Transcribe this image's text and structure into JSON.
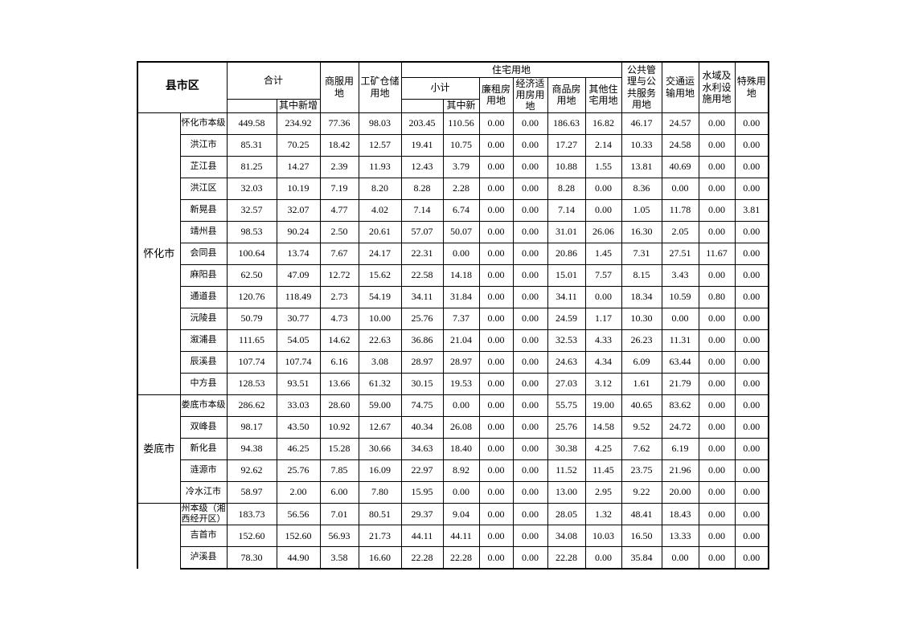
{
  "table": {
    "header": {
      "region": "县市区",
      "total": "合计",
      "total_new": "其中新增",
      "commercial": "商服用地",
      "mining_storage": "工矿仓储用地",
      "residential_group": "住宅用地",
      "residential_subtotal": "小计",
      "residential_subtotal_new": "其中新增",
      "low_rent_housing": "廉租房用地",
      "affordable_housing": "经济适用房用地",
      "commodity_housing": "商品房用地",
      "other_residential": "其他住宅用地",
      "public_management": "公共管理与公共服务用地",
      "transportation": "交通运输用地",
      "water_facilities": "水域及水利设施用地",
      "special_use": "特殊用地"
    },
    "sections": [
      {
        "group": "怀化市",
        "rows": [
          {
            "name": "怀化市本级",
            "values": [
              "449.58",
              "234.92",
              "77.36",
              "98.03",
              "203.45",
              "110.56",
              "0.00",
              "0.00",
              "186.63",
              "16.82",
              "46.17",
              "24.57",
              "0.00",
              "0.00"
            ]
          },
          {
            "name": "洪江市",
            "values": [
              "85.31",
              "70.25",
              "18.42",
              "12.57",
              "19.41",
              "10.75",
              "0.00",
              "0.00",
              "17.27",
              "2.14",
              "10.33",
              "24.58",
              "0.00",
              "0.00"
            ]
          },
          {
            "name": "芷江县",
            "values": [
              "81.25",
              "14.27",
              "2.39",
              "11.93",
              "12.43",
              "3.79",
              "0.00",
              "0.00",
              "10.88",
              "1.55",
              "13.81",
              "40.69",
              "0.00",
              "0.00"
            ]
          },
          {
            "name": "洪江区",
            "values": [
              "32.03",
              "10.19",
              "7.19",
              "8.20",
              "8.28",
              "2.28",
              "0.00",
              "0.00",
              "8.28",
              "0.00",
              "8.36",
              "0.00",
              "0.00",
              "0.00"
            ]
          },
          {
            "name": "新晃县",
            "values": [
              "32.57",
              "32.07",
              "4.77",
              "4.02",
              "7.14",
              "6.74",
              "0.00",
              "0.00",
              "7.14",
              "0.00",
              "1.05",
              "11.78",
              "0.00",
              "3.81"
            ]
          },
          {
            "name": "靖州县",
            "values": [
              "98.53",
              "90.24",
              "2.50",
              "20.61",
              "57.07",
              "50.07",
              "0.00",
              "0.00",
              "31.01",
              "26.06",
              "16.30",
              "2.05",
              "0.00",
              "0.00"
            ]
          },
          {
            "name": "会同县",
            "values": [
              "100.64",
              "13.74",
              "7.67",
              "24.17",
              "22.31",
              "0.00",
              "0.00",
              "0.00",
              "20.86",
              "1.45",
              "7.31",
              "27.51",
              "11.67",
              "0.00"
            ]
          },
          {
            "name": "麻阳县",
            "values": [
              "62.50",
              "47.09",
              "12.72",
              "15.62",
              "22.58",
              "14.18",
              "0.00",
              "0.00",
              "15.01",
              "7.57",
              "8.15",
              "3.43",
              "0.00",
              "0.00"
            ]
          },
          {
            "name": "通道县",
            "values": [
              "120.76",
              "118.49",
              "2.73",
              "54.19",
              "34.11",
              "31.84",
              "0.00",
              "0.00",
              "34.11",
              "0.00",
              "18.34",
              "10.59",
              "0.80",
              "0.00"
            ]
          },
          {
            "name": "沅陵县",
            "values": [
              "50.79",
              "30.77",
              "4.73",
              "10.00",
              "25.76",
              "7.37",
              "0.00",
              "0.00",
              "24.59",
              "1.17",
              "10.30",
              "0.00",
              "0.00",
              "0.00"
            ]
          },
          {
            "name": "溆浦县",
            "values": [
              "111.65",
              "54.05",
              "14.62",
              "22.63",
              "36.86",
              "21.04",
              "0.00",
              "0.00",
              "32.53",
              "4.33",
              "26.23",
              "11.31",
              "0.00",
              "0.00"
            ]
          },
          {
            "name": "辰溪县",
            "values": [
              "107.74",
              "107.74",
              "6.16",
              "3.08",
              "28.97",
              "28.97",
              "0.00",
              "0.00",
              "24.63",
              "4.34",
              "6.09",
              "63.44",
              "0.00",
              "0.00"
            ]
          },
          {
            "name": "中方县",
            "values": [
              "128.53",
              "93.51",
              "13.66",
              "61.32",
              "30.15",
              "19.53",
              "0.00",
              "0.00",
              "27.03",
              "3.12",
              "1.61",
              "21.79",
              "0.00",
              "0.00"
            ]
          }
        ]
      },
      {
        "group": "娄底市",
        "rows": [
          {
            "name": "娄底市本级",
            "values": [
              "286.62",
              "33.03",
              "28.60",
              "59.00",
              "74.75",
              "0.00",
              "0.00",
              "0.00",
              "55.75",
              "19.00",
              "40.65",
              "83.62",
              "0.00",
              "0.00"
            ]
          },
          {
            "name": "双峰县",
            "values": [
              "98.17",
              "43.50",
              "10.92",
              "12.67",
              "40.34",
              "26.08",
              "0.00",
              "0.00",
              "25.76",
              "14.58",
              "9.52",
              "24.72",
              "0.00",
              "0.00"
            ]
          },
          {
            "name": "新化县",
            "values": [
              "94.38",
              "46.25",
              "15.28",
              "30.66",
              "34.63",
              "18.40",
              "0.00",
              "0.00",
              "30.38",
              "4.25",
              "7.62",
              "6.19",
              "0.00",
              "0.00"
            ]
          },
          {
            "name": "涟源市",
            "values": [
              "92.62",
              "25.76",
              "7.85",
              "16.09",
              "22.97",
              "8.92",
              "0.00",
              "0.00",
              "11.52",
              "11.45",
              "23.75",
              "21.96",
              "0.00",
              "0.00"
            ]
          },
          {
            "name": "冷水江市",
            "values": [
              "58.97",
              "2.00",
              "6.00",
              "7.80",
              "15.95",
              "0.00",
              "0.00",
              "0.00",
              "13.00",
              "2.95",
              "9.22",
              "20.00",
              "0.00",
              "0.00"
            ]
          }
        ]
      },
      {
        "group": "",
        "open_bottom": true,
        "rows": [
          {
            "name": "州本级（湘西经开区）",
            "values": [
              "183.73",
              "56.56",
              "7.01",
              "80.51",
              "29.37",
              "9.04",
              "0.00",
              "0.00",
              "28.05",
              "1.32",
              "48.41",
              "18.43",
              "0.00",
              "0.00"
            ]
          },
          {
            "name": "吉首市",
            "values": [
              "152.60",
              "152.60",
              "56.93",
              "21.73",
              "44.11",
              "44.11",
              "0.00",
              "0.00",
              "34.08",
              "10.03",
              "16.50",
              "13.33",
              "0.00",
              "0.00"
            ]
          },
          {
            "name": "泸溪县",
            "values": [
              "78.30",
              "44.90",
              "3.58",
              "16.60",
              "22.28",
              "22.28",
              "0.00",
              "0.00",
              "22.28",
              "0.00",
              "35.84",
              "0.00",
              "0.00",
              "0.00"
            ]
          }
        ]
      }
    ]
  }
}
